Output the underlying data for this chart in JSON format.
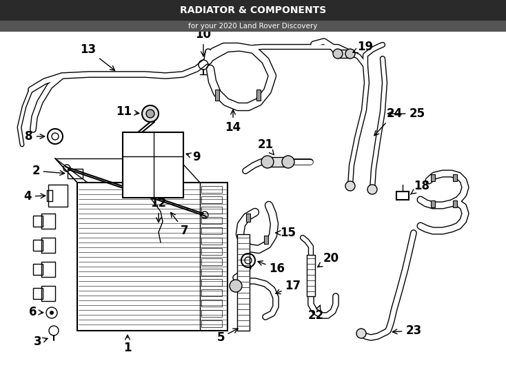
{
  "title": "RADIATOR & COMPONENTS",
  "subtitle": "for your 2020 Land Rover Discovery",
  "bg_color": "#ffffff",
  "lc": "#000000",
  "fig_width": 7.34,
  "fig_height": 5.4,
  "dpi": 100
}
